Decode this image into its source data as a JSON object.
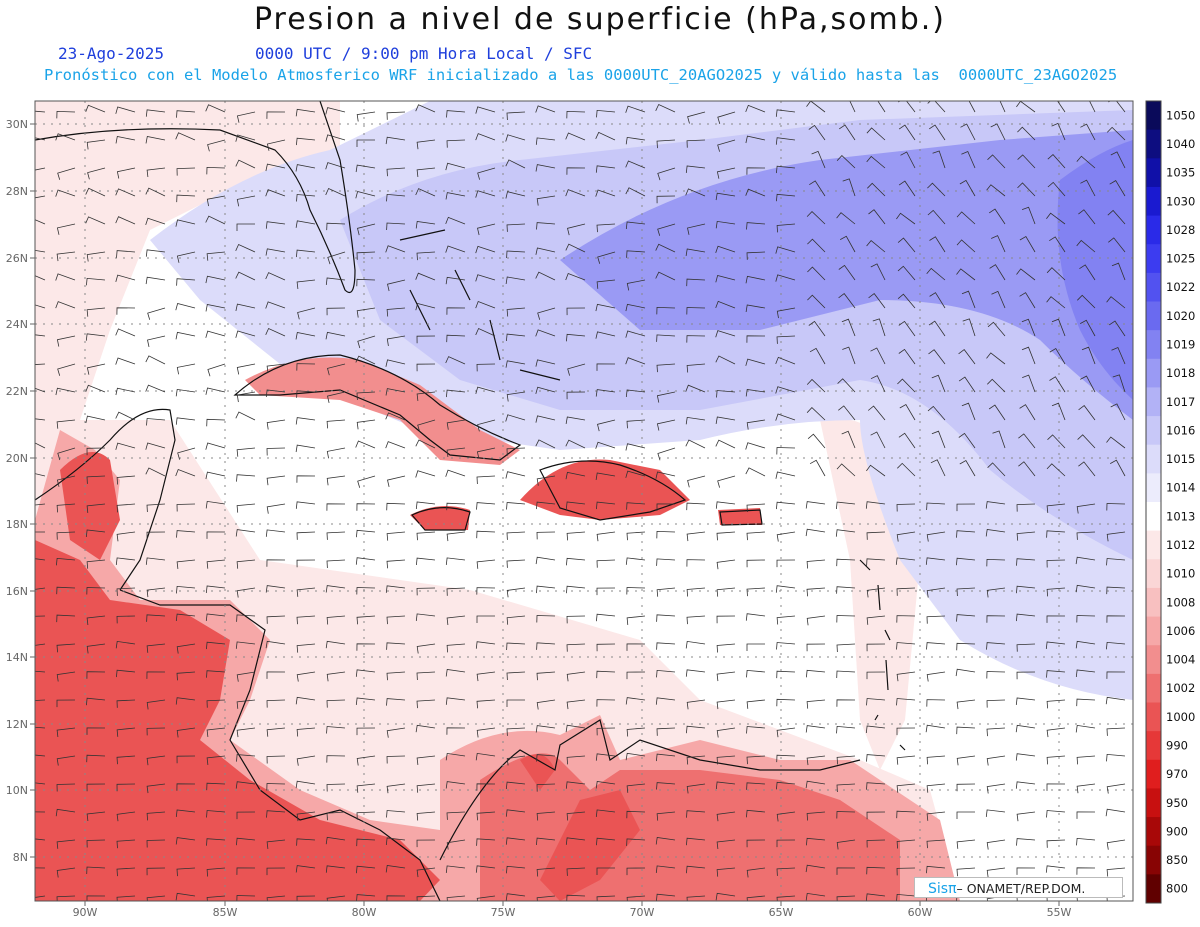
{
  "title": "Presion a nivel de superficie (hPa,somb.)",
  "date": "23-Ago-2025",
  "time_line": "0000 UTC / 9:00 pm Hora Local / SFC",
  "description": "Pronóstico con el Modelo Atmosferico WRF inicializado a las 0000UTC_20AGO2025 y válido hasta las  0000UTC_23AGO2025",
  "lat_labels": [
    "30N",
    "28N",
    "26N",
    "24N",
    "22N",
    "20N",
    "18N",
    "16N",
    "14N",
    "12N",
    "10N",
    "8N"
  ],
  "lon_labels": [
    "90W",
    "85W",
    "80W",
    "75W",
    "70W",
    "65W",
    "60W",
    "55W"
  ],
  "colorbar": {
    "levels": [
      "1050",
      "1040",
      "1035",
      "1030",
      "1028",
      "1025",
      "1022",
      "1020",
      "1019",
      "1018",
      "1017",
      "1016",
      "1015",
      "1014",
      "1013",
      "1012",
      "1010",
      "1008",
      "1006",
      "1004",
      "1002",
      "1000",
      "990",
      "970",
      "950",
      "900",
      "850",
      "800"
    ],
    "colors": [
      "#0a0a5a",
      "#0d0d80",
      "#1010a8",
      "#1a1ad0",
      "#2a2ae8",
      "#3c3cf0",
      "#5252f0",
      "#6a6af0",
      "#8282f2",
      "#9a9af4",
      "#b2b2f6",
      "#c8c8f8",
      "#dcdcfa",
      "#ececfc",
      "#ffffff",
      "#fce8e8",
      "#fad6d6",
      "#f8c0c0",
      "#f6a8a8",
      "#f28e8e",
      "#ee7070",
      "#ea5454",
      "#e63838",
      "#e01e1e",
      "#c81010",
      "#a80808",
      "#880404",
      "#600000"
    ]
  },
  "credit": {
    "logo": "SisPI",
    "org": "– ONAMET/REP.DOM."
  },
  "pressure_regions": [
    {
      "name": "atlantic-high-wide",
      "color": "#dcdcfa"
    },
    {
      "name": "atlantic-high-mid",
      "color": "#c8c8f8"
    },
    {
      "name": "atlantic-high-core",
      "color": "#9a9af4"
    },
    {
      "name": "atlantic-high-peak",
      "color": "#8282f2"
    },
    {
      "name": "gulf-low",
      "color": "#fce8e8"
    },
    {
      "name": "central-america-low",
      "color": "#f6a8a8"
    },
    {
      "name": "central-america-core",
      "color": "#ea5454"
    },
    {
      "name": "south-america-low",
      "color": "#ee7070"
    },
    {
      "name": "cuba-low",
      "color": "#f28e8e"
    },
    {
      "name": "hispaniola-low",
      "color": "#ea5454"
    },
    {
      "name": "jamaica-low",
      "color": "#ea5454"
    },
    {
      "name": "puerto-rico-low",
      "color": "#ea5454"
    }
  ]
}
